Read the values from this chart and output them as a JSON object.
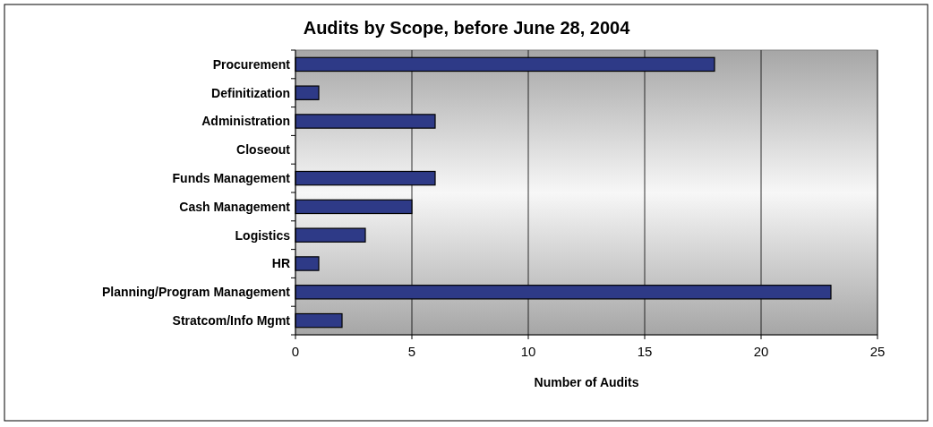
{
  "chart_data": {
    "type": "bar",
    "orientation": "horizontal",
    "title": "Audits by Scope, before June 28, 2004",
    "xlabel": "Number of Audits",
    "categories": [
      "Procurement",
      "Definitization",
      "Administration",
      "Closeout",
      "Funds Management",
      "Cash Management",
      "Logistics",
      "HR",
      "Planning/Program Management",
      "Stratcom/Info Mgmt"
    ],
    "values": [
      18,
      1,
      6,
      0,
      6,
      5,
      3,
      1,
      23,
      2
    ],
    "color": "#2e3a87",
    "xlim": [
      0,
      25
    ],
    "xticks": [
      0,
      5,
      10,
      15,
      20,
      25
    ],
    "grid": "x"
  }
}
